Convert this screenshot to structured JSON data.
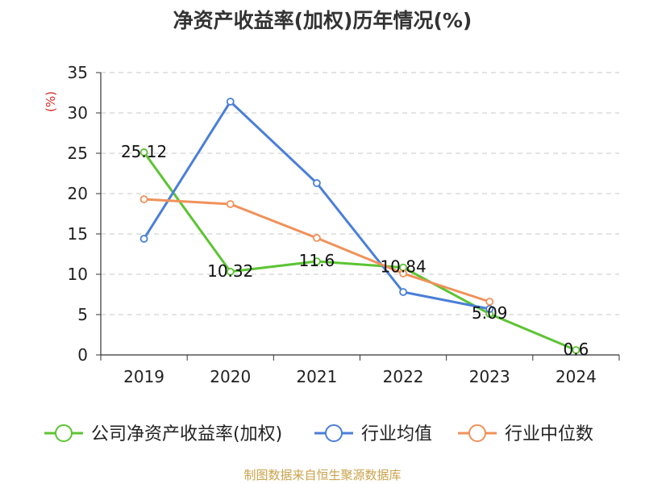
{
  "chart_data": {
    "type": "line",
    "title": "净资产收益率(加权)历年情况(%)",
    "ylabel": "(%)",
    "categories": [
      "2019",
      "2020",
      "2021",
      "2022",
      "2023",
      "2024"
    ],
    "ylim": [
      0,
      35
    ],
    "yticks": [
      0,
      5,
      10,
      15,
      20,
      25,
      30,
      35
    ],
    "grid": true,
    "legend_position": "bottom",
    "series": [
      {
        "name": "公司净资产收益率(加权)",
        "color": "#5cc433",
        "values": [
          25.12,
          10.32,
          11.6,
          10.84,
          5.09,
          0.6
        ],
        "labels": [
          "25.12",
          "10.32",
          "11.6",
          "10.84",
          "5.09",
          "0.6"
        ]
      },
      {
        "name": "行业均值",
        "color": "#4a7fd8",
        "values": [
          14.4,
          31.4,
          21.3,
          7.8,
          5.7,
          null
        ]
      },
      {
        "name": "行业中位数",
        "color": "#f0915a",
        "values": [
          19.3,
          18.7,
          14.5,
          10.1,
          6.6,
          null
        ]
      }
    ]
  },
  "footer": {
    "source": "制图数据来自恒生聚源数据库"
  }
}
